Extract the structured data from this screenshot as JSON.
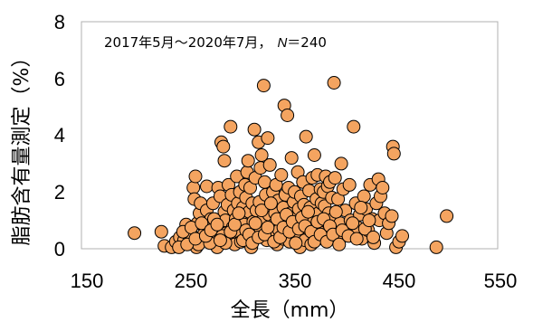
{
  "chart_data": {
    "type": "scatter",
    "xlabel": "全長（mm）",
    "ylabel": "脂肪含有量測定（%）",
    "annotation": "2017年5月～2020年7月，",
    "annotation_n_label": "N",
    "annotation_n_value": "＝240",
    "xlim": [
      150,
      550
    ],
    "ylim": [
      0,
      8
    ],
    "xticks": [
      "150",
      "250",
      "350",
      "450",
      "550"
    ],
    "yticks": [
      "0",
      "2",
      "4",
      "6",
      "8"
    ],
    "grid": false,
    "marker_color": "#F4A460",
    "marker_edge": "#000000",
    "points": [
      [
        196,
        0.55
      ],
      [
        222,
        0.6
      ],
      [
        225,
        0.1
      ],
      [
        232,
        0.05
      ],
      [
        236,
        0.25
      ],
      [
        240,
        0.4
      ],
      [
        244,
        0.3
      ],
      [
        246,
        0.85
      ],
      [
        248,
        0.5
      ],
      [
        250,
        0.2
      ],
      [
        252,
        0.45
      ],
      [
        253,
        2.15
      ],
      [
        254,
        1.75
      ],
      [
        255,
        2.55
      ],
      [
        256,
        0.05
      ],
      [
        257,
        0.9
      ],
      [
        259,
        1.25
      ],
      [
        260,
        1.6
      ],
      [
        262,
        0.35
      ],
      [
        264,
        0.75
      ],
      [
        266,
        2.2
      ],
      [
        266,
        1.35
      ],
      [
        268,
        0.55
      ],
      [
        270,
        1.05
      ],
      [
        271,
        0.3
      ],
      [
        272,
        1.6
      ],
      [
        274,
        0.25
      ],
      [
        275,
        0.65
      ],
      [
        276,
        0.05
      ],
      [
        277,
        2.15
      ],
      [
        278,
        0.95
      ],
      [
        279,
        1.85
      ],
      [
        280,
        3.75
      ],
      [
        282,
        3.6
      ],
      [
        283,
        3.1
      ],
      [
        283,
        1.3
      ],
      [
        284,
        1.0
      ],
      [
        285,
        0.55
      ],
      [
        286,
        1.55
      ],
      [
        287,
        2.25
      ],
      [
        288,
        0.4
      ],
      [
        289,
        4.3
      ],
      [
        290,
        1.9
      ],
      [
        291,
        0.75
      ],
      [
        292,
        1.35
      ],
      [
        293,
        0.15
      ],
      [
        294,
        1.05
      ],
      [
        295,
        2.55
      ],
      [
        296,
        1.6
      ],
      [
        297,
        0.6
      ],
      [
        298,
        2.0
      ],
      [
        299,
        0.25
      ],
      [
        300,
        1.15
      ],
      [
        301,
        1.45
      ],
      [
        302,
        0.85
      ],
      [
        303,
        2.25
      ],
      [
        304,
        1.8
      ],
      [
        305,
        2.7
      ],
      [
        305,
        0.35
      ],
      [
        306,
        3.1
      ],
      [
        307,
        1.3
      ],
      [
        308,
        2.15
      ],
      [
        309,
        0.05
      ],
      [
        310,
        1.6
      ],
      [
        311,
        0.95
      ],
      [
        312,
        4.2
      ],
      [
        313,
        2.5
      ],
      [
        314,
        1.35
      ],
      [
        315,
        0.45
      ],
      [
        316,
        3.75
      ],
      [
        317,
        1.65
      ],
      [
        318,
        2.85
      ],
      [
        318,
        0.7
      ],
      [
        319,
        3.3
      ],
      [
        320,
        1.0
      ],
      [
        321,
        5.75
      ],
      [
        322,
        2.35
      ],
      [
        323,
        1.9
      ],
      [
        324,
        0.3
      ],
      [
        325,
        3.9
      ],
      [
        326,
        1.2
      ],
      [
        327,
        2.95
      ],
      [
        328,
        0.55
      ],
      [
        329,
        1.5
      ],
      [
        330,
        2.0
      ],
      [
        331,
        0.85
      ],
      [
        332,
        1.25
      ],
      [
        333,
        2.25
      ],
      [
        334,
        0.15
      ],
      [
        335,
        1.7
      ],
      [
        336,
        0.65
      ],
      [
        337,
        1.05
      ],
      [
        338,
        2.6
      ],
      [
        339,
        0.35
      ],
      [
        340,
        1.45
      ],
      [
        341,
        5.05
      ],
      [
        342,
        1.9
      ],
      [
        343,
        0.95
      ],
      [
        344,
        4.7
      ],
      [
        345,
        2.15
      ],
      [
        346,
        0.25
      ],
      [
        347,
        1.25
      ],
      [
        348,
        3.2
      ],
      [
        349,
        0.6
      ],
      [
        350,
        1.65
      ],
      [
        351,
        2.0
      ],
      [
        352,
        1.1
      ],
      [
        353,
        0.45
      ],
      [
        354,
        2.7
      ],
      [
        355,
        1.4
      ],
      [
        356,
        0.05
      ],
      [
        357,
        1.85
      ],
      [
        358,
        0.8
      ],
      [
        359,
        2.35
      ],
      [
        360,
        1.55
      ],
      [
        361,
        0.3
      ],
      [
        362,
        3.95
      ],
      [
        363,
        1.2
      ],
      [
        364,
        0.7
      ],
      [
        365,
        2.05
      ],
      [
        366,
        1.45
      ],
      [
        367,
        0.15
      ],
      [
        368,
        2.5
      ],
      [
        369,
        1.0
      ],
      [
        370,
        3.3
      ],
      [
        371,
        0.55
      ],
      [
        372,
        1.75
      ],
      [
        373,
        2.6
      ],
      [
        374,
        1.25
      ],
      [
        375,
        0.85
      ],
      [
        376,
        2.1
      ],
      [
        377,
        1.6
      ],
      [
        378,
        0.35
      ],
      [
        379,
        2.0
      ],
      [
        380,
        1.5
      ],
      [
        381,
        2.55
      ],
      [
        382,
        0.95
      ],
      [
        383,
        2.2
      ],
      [
        384,
        1.25
      ],
      [
        385,
        2.35
      ],
      [
        386,
        0.65
      ],
      [
        387,
        1.8
      ],
      [
        388,
        1.05
      ],
      [
        389,
        5.85
      ],
      [
        390,
        2.5
      ],
      [
        392,
        0.45
      ],
      [
        393,
        1.75
      ],
      [
        395,
        0.9
      ],
      [
        396,
        3.0
      ],
      [
        398,
        2.1
      ],
      [
        400,
        1.35
      ],
      [
        402,
        0.6
      ],
      [
        404,
        2.25
      ],
      [
        405,
        1.0
      ],
      [
        408,
        4.3
      ],
      [
        410,
        1.6
      ],
      [
        412,
        0.75
      ],
      [
        414,
        1.2
      ],
      [
        416,
        0.35
      ],
      [
        418,
        1.85
      ],
      [
        420,
        1.4
      ],
      [
        422,
        0.65
      ],
      [
        424,
        2.25
      ],
      [
        426,
        1.05
      ],
      [
        428,
        0.2
      ],
      [
        430,
        1.6
      ],
      [
        432,
        2.45
      ],
      [
        433,
        1.0
      ],
      [
        434,
        1.85
      ],
      [
        436,
        2.15
      ],
      [
        438,
        1.25
      ],
      [
        440,
        0.55
      ],
      [
        442,
        0.9
      ],
      [
        445,
        1.15
      ],
      [
        446,
        3.6
      ],
      [
        447,
        3.35
      ],
      [
        449,
        0.05
      ],
      [
        452,
        0.25
      ],
      [
        455,
        0.45
      ],
      [
        488,
        0.05
      ],
      [
        498,
        1.15
      ],
      [
        258,
        0.15
      ],
      [
        263,
        0.5
      ],
      [
        269,
        0.2
      ],
      [
        273,
        1.05
      ],
      [
        281,
        0.45
      ],
      [
        284,
        0.2
      ],
      [
        289,
        0.6
      ],
      [
        293,
        0.85
      ],
      [
        297,
        1.25
      ],
      [
        301,
        0.3
      ],
      [
        304,
        0.65
      ],
      [
        307,
        0.5
      ],
      [
        310,
        0.2
      ],
      [
        313,
        0.9
      ],
      [
        316,
        0.4
      ],
      [
        319,
        1.35
      ],
      [
        322,
        0.5
      ],
      [
        325,
        0.75
      ],
      [
        328,
        1.6
      ],
      [
        331,
        0.25
      ],
      [
        334,
        1.05
      ],
      [
        337,
        0.4
      ],
      [
        340,
        0.75
      ],
      [
        343,
        1.2
      ],
      [
        346,
        0.6
      ],
      [
        349,
        0.95
      ],
      [
        352,
        0.2
      ],
      [
        355,
        0.7
      ],
      [
        358,
        1.1
      ],
      [
        361,
        0.8
      ],
      [
        364,
        1.3
      ],
      [
        367,
        0.6
      ],
      [
        370,
        0.25
      ],
      [
        373,
        0.95
      ],
      [
        376,
        0.5
      ],
      [
        379,
        1.05
      ],
      [
        382,
        0.25
      ],
      [
        385,
        0.8
      ],
      [
        388,
        0.5
      ],
      [
        391,
        1.3
      ],
      [
        394,
        0.15
      ],
      [
        397,
        0.65
      ],
      [
        403,
        0.45
      ],
      [
        407,
        0.9
      ],
      [
        411,
        0.35
      ],
      [
        415,
        1.45
      ],
      [
        419,
        0.7
      ],
      [
        423,
        1.0
      ],
      [
        427,
        0.4
      ],
      [
        239,
        0.05
      ],
      [
        243,
        0.6
      ],
      [
        247,
        0.15
      ],
      [
        251,
        0.75
      ],
      [
        255,
        0.35
      ],
      [
        261,
        0.9
      ],
      [
        265,
        0.45
      ],
      [
        270,
        0.65
      ],
      [
        276,
        0.85
      ],
      [
        279,
        0.3
      ]
    ]
  }
}
